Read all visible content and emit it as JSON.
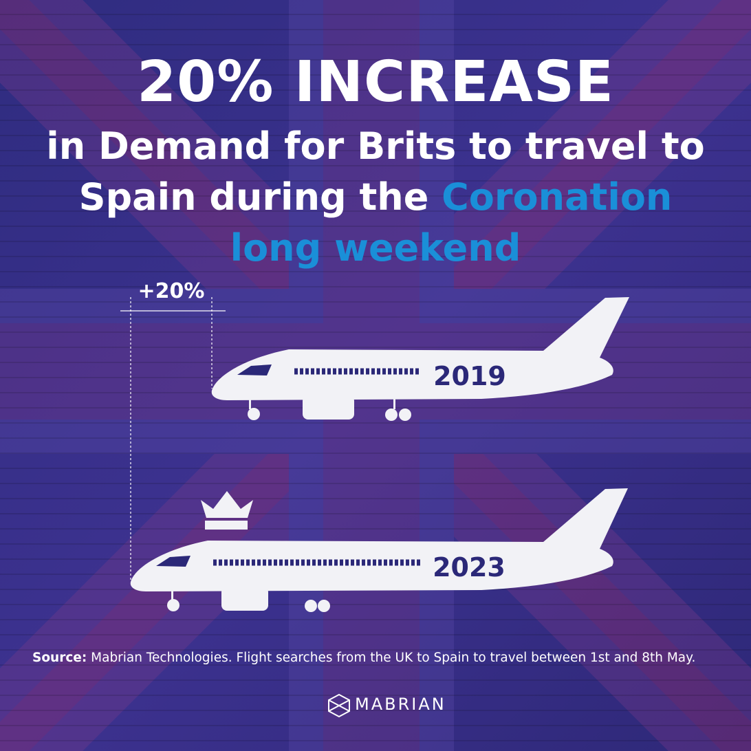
{
  "headline": "20% INCREASE",
  "subtitle": {
    "line1": "in Demand for Brits to travel to",
    "line2_plain": "Spain during the",
    "line2_highlight": "Coronation",
    "line3_highlight": "long weekend"
  },
  "comparison": {
    "change_label": "+20%",
    "planes": [
      {
        "label": "2019"
      },
      {
        "label": "2023"
      }
    ]
  },
  "footer": {
    "source_label": "Source:",
    "source_text": "Mabrian Technologies. Flight searches from the UK to Spain to travel between 1st and 8th May.",
    "brand": "MABRIAN"
  }
}
